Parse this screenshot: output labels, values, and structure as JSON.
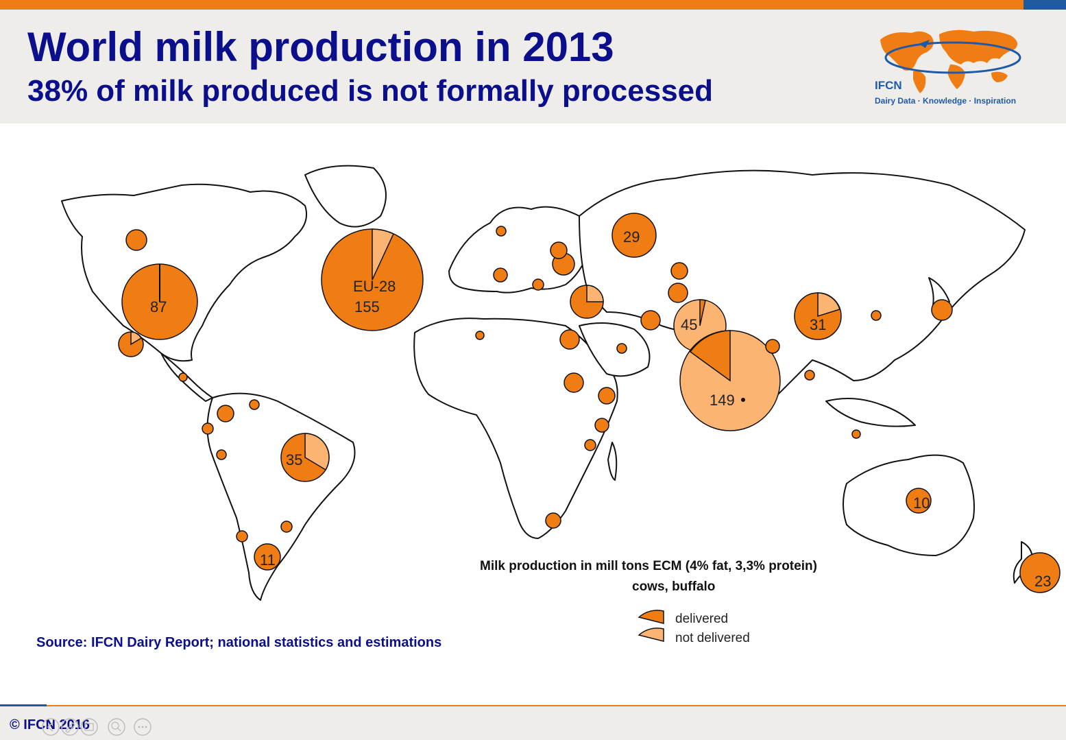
{
  "header": {
    "title": "World milk production in 2013",
    "subtitle": "38% of milk produced is not formally processed"
  },
  "logo": {
    "name": "IFCN",
    "tagline": "Dairy Data · Knowledge · Inspiration"
  },
  "legend": {
    "title": "Milk production in mill tons ECM (4% fat, 3,3% protein)",
    "subtitle": "cows, buffalo",
    "items": [
      "delivered",
      "not delivered"
    ]
  },
  "map_labels": {
    "usa": "87",
    "eu_line1": "EU-28",
    "eu_line2": "155",
    "russia": "29",
    "pakistan": "45",
    "china": "31",
    "india": "149",
    "brazil": "35",
    "argentina": "11",
    "australia": "10",
    "new_zealand": "23"
  },
  "source": "Source: IFCN Dairy Report; national statistics and estimations",
  "footer": {
    "copyright": "© IFCN 2016"
  },
  "colors": {
    "delivered": "#f07d14",
    "not_delivered": "#fbb472",
    "title_blue": "#0b0f8c",
    "accent_orange": "#f07d14"
  }
}
